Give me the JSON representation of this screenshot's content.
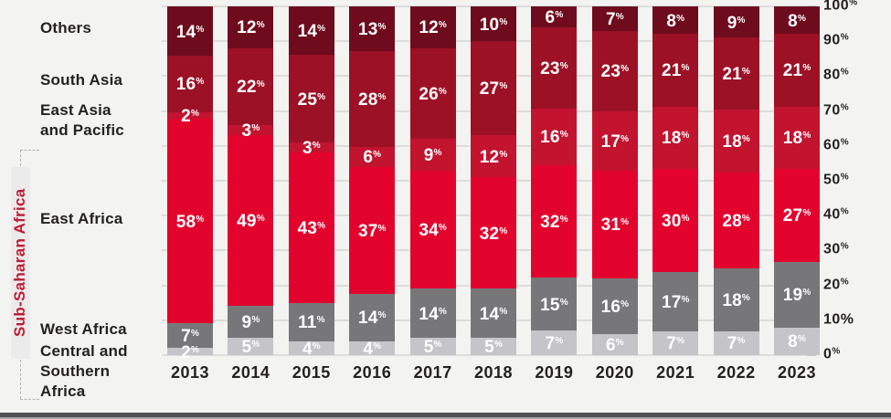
{
  "chart_data": {
    "type": "bar",
    "subtype": "stacked-100-percent",
    "title": "",
    "categories": [
      "2013",
      "2014",
      "2015",
      "2016",
      "2017",
      "2018",
      "2019",
      "2020",
      "2021",
      "2022",
      "2023"
    ],
    "series": [
      {
        "name": "Central and Southern Africa",
        "color": "#c4c4c9",
        "values": [
          2,
          5,
          4,
          4,
          5,
          5,
          7,
          6,
          7,
          7,
          8
        ]
      },
      {
        "name": "West Africa",
        "color": "#77777a",
        "values": [
          7,
          9,
          11,
          14,
          14,
          14,
          15,
          16,
          17,
          18,
          19
        ]
      },
      {
        "name": "East Africa",
        "color": "#e3042e",
        "values": [
          58,
          49,
          43,
          37,
          34,
          32,
          32,
          31,
          30,
          28,
          27
        ]
      },
      {
        "name": "East Asia and Pacific",
        "color": "#c2132f",
        "values": [
          2,
          3,
          3,
          6,
          9,
          12,
          16,
          17,
          18,
          18,
          18
        ]
      },
      {
        "name": "South Asia",
        "color": "#9c1126",
        "values": [
          16,
          22,
          25,
          28,
          26,
          27,
          23,
          23,
          21,
          21,
          21
        ]
      },
      {
        "name": "Others",
        "color": "#6e0b1d",
        "values": [
          14,
          12,
          14,
          13,
          12,
          10,
          6,
          7,
          8,
          9,
          8
        ]
      }
    ],
    "series_order_note": "listed bottom-to-top of stack",
    "value_suffix": "%",
    "y_axis": {
      "position": "right",
      "range": [
        0,
        100
      ],
      "grid": true,
      "ticks": [
        {
          "value": "100",
          "pct_style": "sup"
        },
        {
          "value": "90",
          "pct_style": "sup"
        },
        {
          "value": "80",
          "pct_style": "sup"
        },
        {
          "value": "70",
          "pct_style": "sup"
        },
        {
          "value": "60",
          "pct_style": "sup"
        },
        {
          "value": "50",
          "pct_style": "sup"
        },
        {
          "value": "40",
          "pct_style": "sup"
        },
        {
          "value": "30",
          "pct_style": "sup"
        },
        {
          "value": "20",
          "pct_style": "sup"
        },
        {
          "value": "10",
          "pct_style": "inline"
        },
        {
          "value": "0",
          "pct_style": "sup"
        }
      ]
    },
    "group_label": "Sub-Saharan Africa",
    "grouped_series": [
      "East Africa",
      "West Africa",
      "Central and Southern Africa"
    ],
    "legend_position": "left",
    "colors": {
      "background": "#f3f4f1",
      "grid": "#dcddda",
      "text": "#242122",
      "group_label": "#bf1b33",
      "bar_value_text": "#ffffff"
    }
  },
  "left_labels": [
    {
      "id": "others",
      "lines": [
        "Others"
      ]
    },
    {
      "id": "south-asia",
      "lines": [
        "South Asia"
      ]
    },
    {
      "id": "east-asia-pacific",
      "lines": [
        "East Asia",
        "and Pacific"
      ]
    },
    {
      "id": "east-africa",
      "lines": [
        "East Africa"
      ]
    },
    {
      "id": "west-africa",
      "lines": [
        "West Africa"
      ]
    },
    {
      "id": "central-southern",
      "lines": [
        "Central and",
        "Southern",
        "Africa"
      ]
    }
  ]
}
